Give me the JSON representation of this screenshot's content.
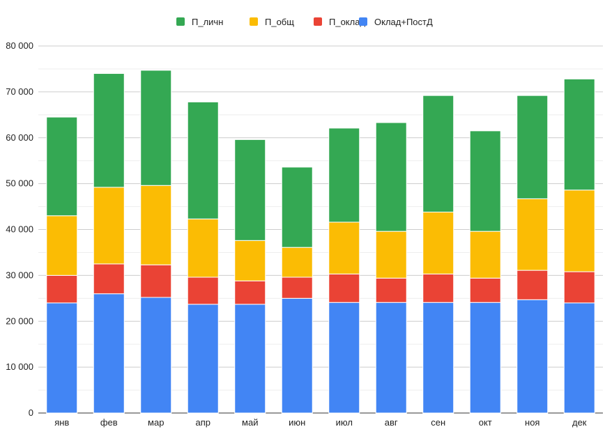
{
  "chart_data": {
    "type": "bar",
    "stacked": true,
    "title": "",
    "xlabel": "",
    "ylabel": "",
    "ylim": [
      0,
      80000
    ],
    "y_ticks": [
      0,
      10000,
      20000,
      30000,
      40000,
      50000,
      60000,
      70000,
      80000
    ],
    "y_tick_labels": [
      "0",
      "10 000",
      "20 000",
      "30 000",
      "40 000",
      "50 000",
      "60 000",
      "70 000",
      "80 000"
    ],
    "grid": true,
    "legend_position": "top",
    "categories": [
      "янв",
      "фев",
      "мар",
      "апр",
      "май",
      "июн",
      "июл",
      "авг",
      "сен",
      "окт",
      "ноя",
      "дек"
    ],
    "series": [
      {
        "name": "Оклад+ПостД",
        "color": "#4285f4",
        "values": [
          24000,
          26000,
          25200,
          23700,
          23700,
          25000,
          24100,
          24100,
          24100,
          24100,
          24700,
          24000
        ]
      },
      {
        "name": "П_оклад",
        "color": "#ea4335",
        "values": [
          6000,
          6500,
          7100,
          5900,
          5100,
          4600,
          6200,
          5300,
          6200,
          5300,
          6400,
          6800
        ]
      },
      {
        "name": "П_общ",
        "color": "#fbbc04",
        "values": [
          13000,
          16700,
          17300,
          12700,
          8800,
          6500,
          11300,
          10200,
          13500,
          10200,
          15600,
          17800
        ]
      },
      {
        "name": "П_личн",
        "color": "#34a853",
        "values": [
          21500,
          24800,
          25100,
          25500,
          22000,
          17500,
          20500,
          23700,
          25400,
          21900,
          22500,
          24200
        ]
      }
    ],
    "legend_order": [
      "П_личн",
      "П_общ",
      "П_оклад",
      "Оклад+ПостД"
    ]
  }
}
